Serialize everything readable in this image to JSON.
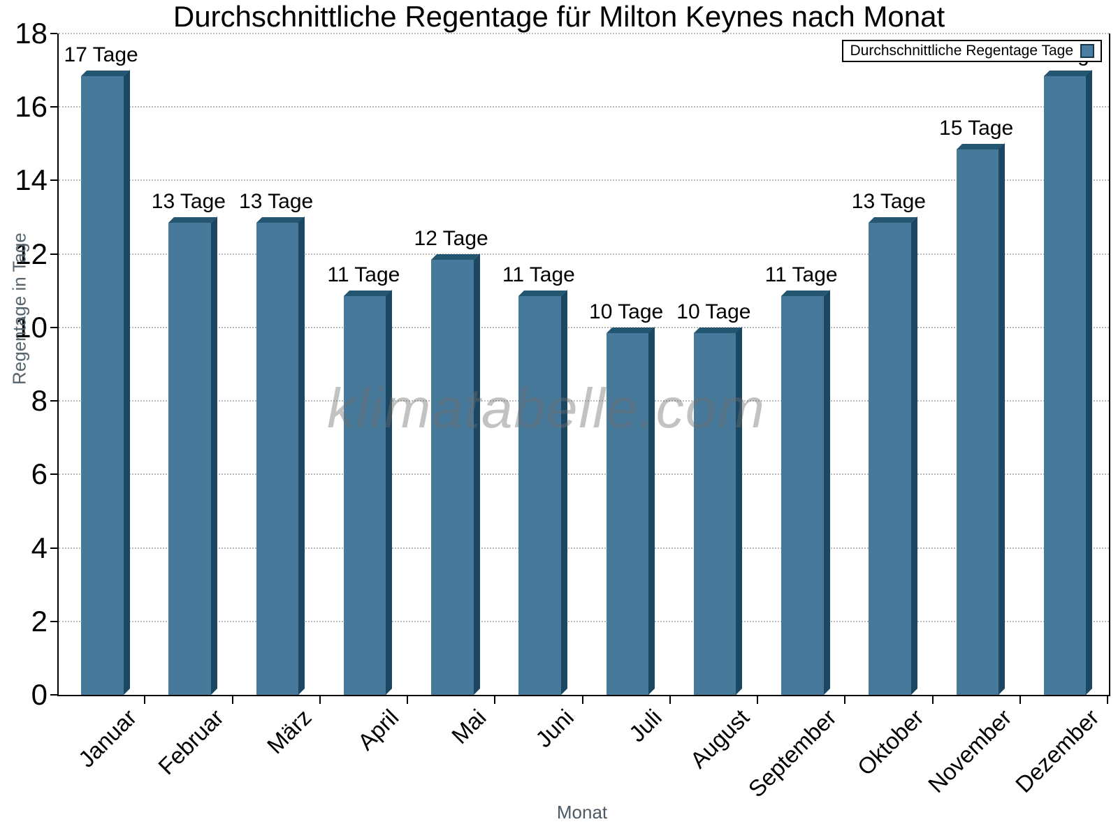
{
  "chart_data": {
    "type": "bar",
    "title": "Durchschnittliche Regentage für Milton Keynes nach Monat",
    "xlabel": "Monat",
    "ylabel": "Regentage in Tage",
    "legend_label": "Durchschnittliche Regentage Tage",
    "watermark": "klimatabelle.com",
    "categories": [
      "Januar",
      "Februar",
      "März",
      "April",
      "Mai",
      "Juni",
      "Juli",
      "August",
      "September",
      "Oktober",
      "November",
      "Dezember"
    ],
    "values": [
      17,
      13,
      13,
      11,
      12,
      11,
      10,
      10,
      11,
      13,
      15,
      17
    ],
    "bar_labels": [
      "17 Tage",
      "13 Tage",
      "13 Tage",
      "11 Tage",
      "12 Tage",
      "11 Tage",
      "10 Tage",
      "10 Tage",
      "11 Tage",
      "13 Tage",
      "15 Tage",
      "17 Tage"
    ],
    "ylim": [
      0,
      18
    ],
    "ytick_step": 2,
    "grid": "horizontal-dotted",
    "legend_position": "top-right",
    "colors": {
      "bar_face": "#47799b",
      "bar_top": "#245672",
      "bar_side": "#1b4763",
      "grid": "#bcbcbc",
      "axis": "#000000",
      "axis_title": "#56646e",
      "watermark_gray": "#6e6e6e",
      "legend_swatch_fill": "#4a7ea0",
      "legend_swatch_border": "#16374d"
    }
  }
}
